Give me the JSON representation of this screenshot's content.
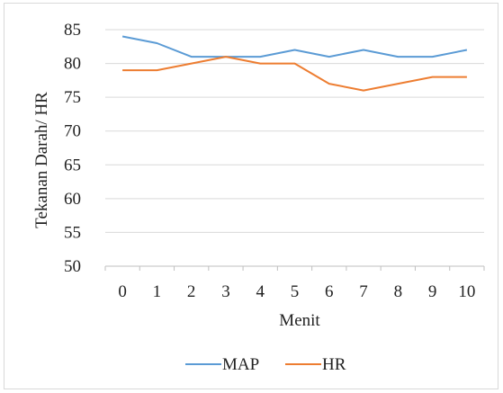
{
  "chart_data": {
    "type": "line",
    "xlabel": "Menit",
    "ylabel": "Tekanan Darah/ HR",
    "ylim": [
      50,
      85
    ],
    "yticks": [
      "50",
      "55",
      "60",
      "65",
      "70",
      "75",
      "80",
      "85"
    ],
    "categories": [
      "0",
      "1",
      "2",
      "3",
      "4",
      "5",
      "6",
      "7",
      "8",
      "9",
      "10"
    ],
    "grid": true,
    "legend": "bottom",
    "series": [
      {
        "name": "MAP",
        "color": "#5b9bd5",
        "values": [
          84,
          83,
          81,
          81,
          81,
          82,
          81,
          82,
          81,
          81,
          82
        ]
      },
      {
        "name": "HR",
        "color": "#ed7d31",
        "values": [
          79,
          79,
          80,
          81,
          80,
          80,
          77,
          76,
          77,
          78,
          78
        ]
      }
    ]
  }
}
